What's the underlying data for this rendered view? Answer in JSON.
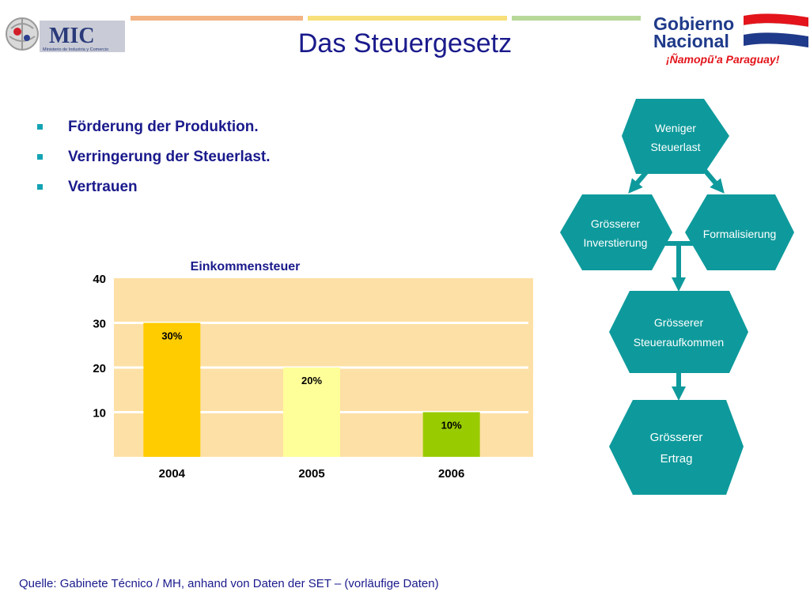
{
  "header": {
    "title": "Das Steuergesetz",
    "left_logo": {
      "text": "MIC",
      "caption": "Ministerio de Industria y Comercio"
    },
    "right_logo": {
      "line1": "Gobierno",
      "line2": "Nacional",
      "slogan": "¡Ñamopũ'a Paraguay!"
    },
    "bar_colors": [
      "#f3b383",
      "#f7e07a",
      "#b8d89a"
    ]
  },
  "bullets": [
    "Förderung der Produktion.",
    "Verringerung der Steuerlast.",
    "Vertrauen"
  ],
  "chart_data": {
    "type": "bar",
    "title": "Einkommensteuer",
    "categories": [
      "2004",
      "2005",
      "2006"
    ],
    "values": [
      30,
      20,
      10
    ],
    "data_labels": [
      "30%",
      "20%",
      "10%"
    ],
    "bar_colors": [
      "#ffcc00",
      "#ffff99",
      "#99cc00"
    ],
    "y_ticks": [
      "10",
      "20",
      "30",
      "40"
    ],
    "ylim": [
      0,
      40
    ],
    "grid": true,
    "plot_background": "#fde0a6"
  },
  "diagram": {
    "nodes": [
      {
        "id": "weniger",
        "line1": "Weniger",
        "line2": "Steuerlast"
      },
      {
        "id": "investierung",
        "line1": "Grösserer",
        "line2": "Inverstierung"
      },
      {
        "id": "formalisierung",
        "line1": "Formalisierung",
        "line2": ""
      },
      {
        "id": "steueraufkommen",
        "line1": "Grösserer",
        "line2": "Steueraufkommen"
      },
      {
        "id": "ertrag",
        "line1": "Grösserer",
        "line2": "Ertrag"
      }
    ],
    "color": "#0e9a9c"
  },
  "footer": {
    "source": "Quelle: Gabinete Técnico / MH, anhand von Daten der SET – (vorläufige Daten)"
  }
}
